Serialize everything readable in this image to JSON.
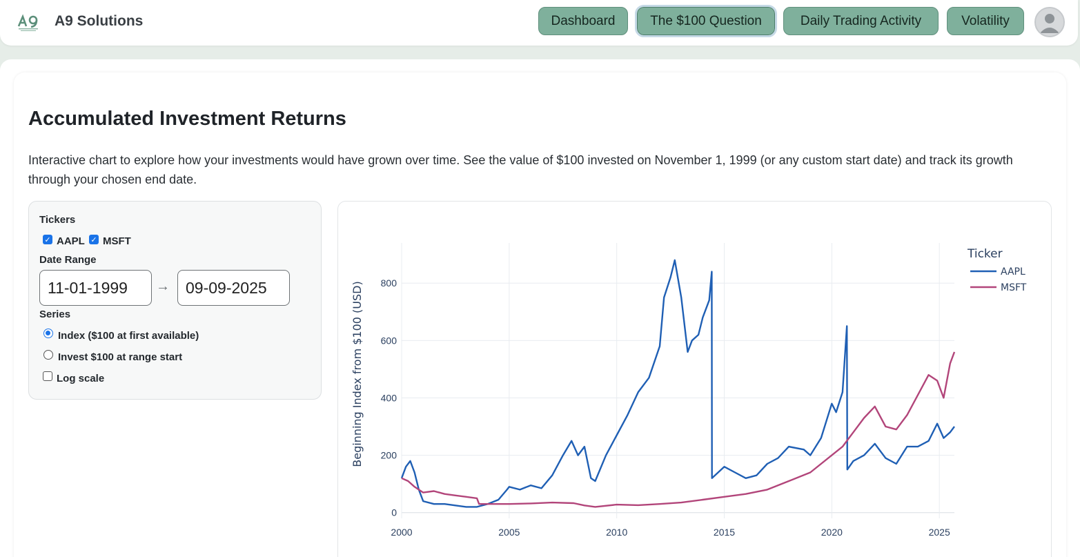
{
  "header": {
    "brand": "A9 Solutions",
    "nav": [
      {
        "label": "Dashboard",
        "active": false
      },
      {
        "label": "The $100 Question",
        "active": true
      },
      {
        "label": "Daily Trading Activity",
        "active": false
      },
      {
        "label": "Volatility",
        "active": false
      }
    ],
    "avatar_icon": "user-avatar-icon"
  },
  "page": {
    "title": "Accumulated Investment Returns",
    "description": "Interactive chart to explore how your investments would have grown over time. See the value of $100 invested on November 1, 1999 (or any custom start date) and track its growth through your chosen end date."
  },
  "controls": {
    "tickers_label": "Tickers",
    "tickers": [
      {
        "label": "AAPL",
        "checked": true
      },
      {
        "label": "MSFT",
        "checked": true
      }
    ],
    "date_range_label": "Date Range",
    "start_date": "11-01-1999",
    "arrow": "→",
    "end_date": "09-09-2025",
    "series_label": "Series",
    "series_options": [
      {
        "label": "Index ($100 at first available)",
        "selected": true
      },
      {
        "label": "Invest $100 at range start",
        "selected": false
      }
    ],
    "log_scale_label": "Log scale",
    "log_scale": false
  },
  "colors": {
    "accent": "#7fb09c",
    "aapl": "#1f5fb4",
    "msft": "#b2457a"
  },
  "chart_data": {
    "type": "line",
    "title": "",
    "xlabel": "",
    "ylabel": "Beginning Index from $100 (USD)",
    "x_ticks": [
      "2000",
      "2005",
      "2010",
      "2015",
      "2020",
      "2025"
    ],
    "y_ticks": [
      "0",
      "200",
      "400",
      "600",
      "800"
    ],
    "xlim": [
      2000.0,
      2025.7
    ],
    "ylim": [
      -20,
      940
    ],
    "grid": true,
    "legend_title": "Ticker",
    "legend_position": "top-right",
    "series": [
      {
        "name": "AAPL",
        "x": [
          2000.0,
          2000.2,
          2000.4,
          2000.6,
          2000.8,
          2001.0,
          2001.5,
          2002.0,
          2002.5,
          2003.0,
          2003.5,
          2004.0,
          2004.5,
          2004.9,
          2005.0,
          2005.5,
          2006.0,
          2006.5,
          2007.0,
          2007.5,
          2007.9,
          2008.2,
          2008.5,
          2008.8,
          2009.0,
          2009.5,
          2010.0,
          2010.5,
          2011.0,
          2011.5,
          2012.0,
          2012.2,
          2012.5,
          2012.7,
          2013.0,
          2013.3,
          2013.5,
          2013.8,
          2014.0,
          2014.3,
          2014.42,
          2014.43,
          2015.0,
          2015.5,
          2016.0,
          2016.5,
          2017.0,
          2017.5,
          2018.0,
          2018.7,
          2019.0,
          2019.5,
          2020.0,
          2020.2,
          2020.5,
          2020.7,
          2020.72,
          2021.0,
          2021.5,
          2022.0,
          2022.5,
          2023.0,
          2023.5,
          2024.0,
          2024.5,
          2024.9,
          2025.2,
          2025.5,
          2025.7
        ],
        "values": [
          120,
          160,
          180,
          140,
          80,
          40,
          30,
          30,
          25,
          20,
          20,
          30,
          45,
          80,
          90,
          80,
          95,
          85,
          130,
          200,
          250,
          200,
          230,
          120,
          110,
          200,
          270,
          340,
          420,
          470,
          580,
          750,
          820,
          880,
          750,
          560,
          600,
          620,
          680,
          740,
          840,
          120,
          160,
          140,
          120,
          130,
          170,
          190,
          230,
          220,
          200,
          260,
          380,
          350,
          420,
          650,
          150,
          180,
          200,
          240,
          190,
          170,
          230,
          230,
          250,
          310,
          260,
          280,
          300
        ]
      },
      {
        "name": "MSFT",
        "x": [
          2000.0,
          2000.3,
          2000.6,
          2001.0,
          2001.5,
          2002.0,
          2002.5,
          2003.0,
          2003.5,
          2003.6,
          2004.0,
          2005.0,
          2006.0,
          2007.0,
          2008.0,
          2008.5,
          2009.0,
          2010.0,
          2011.0,
          2012.0,
          2013.0,
          2014.0,
          2015.0,
          2016.0,
          2017.0,
          2018.0,
          2019.0,
          2020.0,
          2020.5,
          2021.0,
          2021.5,
          2022.0,
          2022.5,
          2023.0,
          2023.5,
          2024.0,
          2024.5,
          2024.9,
          2025.2,
          2025.5,
          2025.7
        ],
        "values": [
          120,
          110,
          90,
          70,
          75,
          65,
          60,
          55,
          50,
          30,
          30,
          30,
          32,
          35,
          33,
          25,
          20,
          28,
          26,
          30,
          35,
          45,
          55,
          65,
          80,
          110,
          140,
          200,
          230,
          280,
          330,
          370,
          300,
          290,
          340,
          410,
          480,
          460,
          400,
          520,
          560
        ]
      }
    ]
  }
}
